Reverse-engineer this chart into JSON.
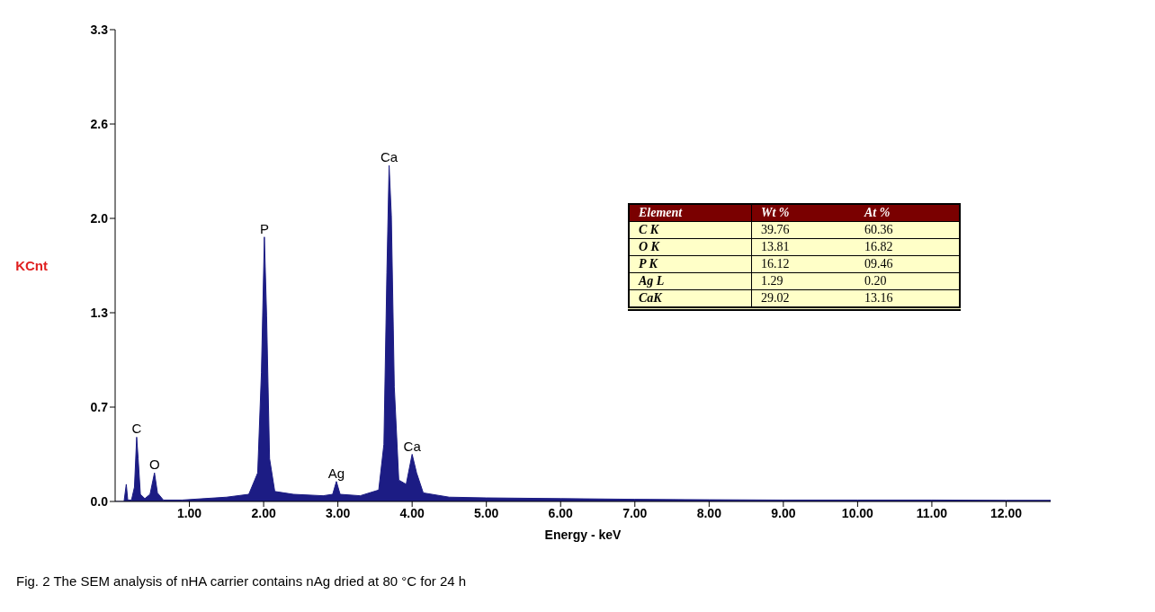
{
  "chart_data": {
    "type": "area",
    "xlabel": "Energy - keV",
    "ylabel": "KCnt",
    "x": [
      0,
      0.12,
      0.15,
      0.17,
      0.22,
      0.26,
      0.29,
      0.31,
      0.34,
      0.4,
      0.47,
      0.53,
      0.57,
      0.65,
      0.9,
      1.2,
      1.5,
      1.8,
      1.92,
      1.97,
      2.01,
      2.04,
      2.08,
      2.15,
      2.4,
      2.8,
      2.93,
      2.98,
      3.03,
      3.3,
      3.55,
      3.62,
      3.66,
      3.69,
      3.72,
      3.76,
      3.82,
      3.92,
      4.0,
      4.06,
      4.15,
      4.5,
      5,
      6,
      7,
      8,
      9,
      10,
      11,
      12,
      12.6
    ],
    "series": [
      {
        "color": "#1c1c84",
        "values": [
          0,
          0,
          0.12,
          0.01,
          0.01,
          0.1,
          0.45,
          0.3,
          0.05,
          0.02,
          0.05,
          0.2,
          0.06,
          0.01,
          0.01,
          0.02,
          0.03,
          0.05,
          0.2,
          0.9,
          1.85,
          1.3,
          0.3,
          0.07,
          0.05,
          0.04,
          0.05,
          0.14,
          0.05,
          0.04,
          0.08,
          0.4,
          1.6,
          2.35,
          2.0,
          0.8,
          0.15,
          0.12,
          0.33,
          0.2,
          0.06,
          0.03,
          0.025,
          0.02,
          0.015,
          0.012,
          0.01,
          0.01,
          0.01,
          0.008,
          0.008
        ]
      }
    ],
    "xlim": [
      0,
      12.6
    ],
    "xticks": [
      {
        "value": 1,
        "label": "1.00"
      },
      {
        "value": 2,
        "label": "2.00"
      },
      {
        "value": 3,
        "label": "3.00"
      },
      {
        "value": 4,
        "label": "4.00"
      },
      {
        "value": 5,
        "label": "5.00"
      },
      {
        "value": 6,
        "label": "6.00"
      },
      {
        "value": 7,
        "label": "7.00"
      },
      {
        "value": 8,
        "label": "8.00"
      },
      {
        "value": 9,
        "label": "9.00"
      },
      {
        "value": 10,
        "label": "10.00"
      },
      {
        "value": 11,
        "label": "11.00"
      },
      {
        "value": 12,
        "label": "12.00"
      }
    ],
    "ylim": [
      0,
      3.3
    ],
    "yticks": [
      {
        "value": 0,
        "label": "0.0"
      },
      {
        "value": 0.66,
        "label": "0.7"
      },
      {
        "value": 1.32,
        "label": "1.3"
      },
      {
        "value": 1.98,
        "label": "2.0"
      },
      {
        "value": 2.64,
        "label": "2.6"
      },
      {
        "value": 3.3,
        "label": "3.3"
      }
    ],
    "grid": false,
    "legend": false,
    "annotations": [
      {
        "text": "C",
        "x": 0.29,
        "y": 0.45
      },
      {
        "text": "O",
        "x": 0.53,
        "y": 0.2
      },
      {
        "text": "P",
        "x": 2.01,
        "y": 1.85
      },
      {
        "text": "Ag",
        "x": 2.98,
        "y": 0.14
      },
      {
        "text": "Ca",
        "x": 3.69,
        "y": 2.35
      },
      {
        "text": "Ca",
        "x": 4.0,
        "y": 0.33
      },
      "Element",
      "Wt %",
      "At %",
      "C K",
      "39.76",
      "60.36",
      "O K",
      "13.81",
      "16.82",
      "P K",
      "16.12",
      "09.46",
      "Ag L",
      "1.29",
      "0.20",
      "CaK",
      "29.02",
      "13.16",
      "Fig. 2  The SEM analysis of nHA carrier contains nAg dried at 80 °C for 24 h"
    ]
  }
}
